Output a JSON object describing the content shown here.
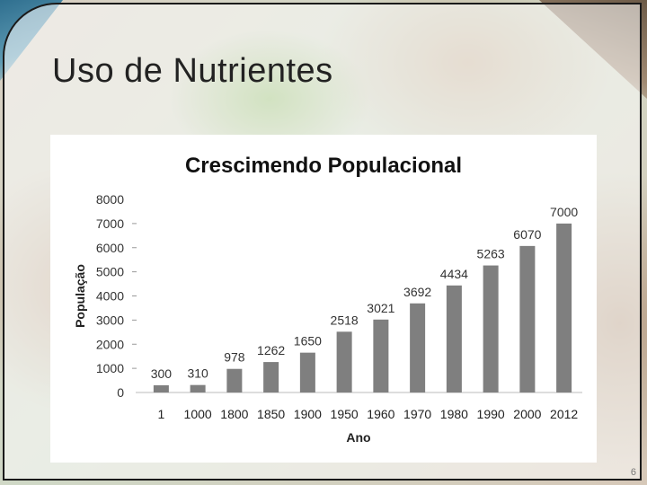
{
  "slide": {
    "title": "Uso de Nutrientes",
    "page_number": "6"
  },
  "chart_data": {
    "type": "bar",
    "title": "Crescimendo Populacional",
    "xlabel": "Ano",
    "ylabel": "População",
    "categories": [
      "1",
      "1000",
      "1800",
      "1850",
      "1900",
      "1950",
      "1960",
      "1970",
      "1980",
      "1990",
      "2000",
      "2012"
    ],
    "values": [
      300,
      310,
      978,
      1262,
      1650,
      2518,
      3021,
      3692,
      4434,
      5263,
      6070,
      7000
    ],
    "y_ticks": [
      0,
      1000,
      2000,
      3000,
      4000,
      5000,
      6000,
      7000,
      8000
    ],
    "ylim": [
      0,
      8000
    ],
    "grid": false,
    "legend": "none",
    "bar_color": "#7f7f7f"
  }
}
